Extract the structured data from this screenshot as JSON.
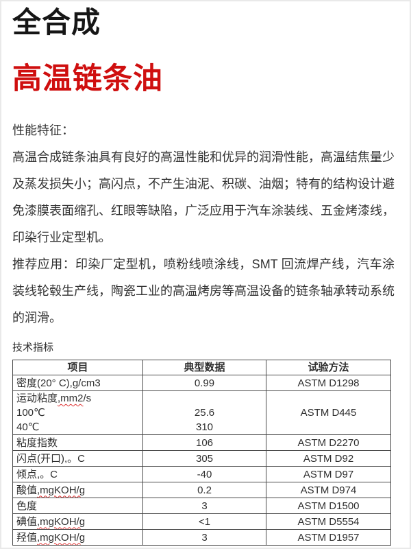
{
  "header": {
    "series": "全合成",
    "product": "高温链条油"
  },
  "colors": {
    "product_title_red": "#cf0f0f",
    "spellcheck_wavy_red": "#e03535",
    "table_border": "#474747"
  },
  "sections": {
    "features_heading": "性能特征：",
    "features_body": "高温合成链条油具有良好的高温性能和优异的润滑性能，高温结焦量少及蒸发损失小；高闪点，不产生油泥、积碳、油烟；特有的结构设计避免漆膜表面缩孔、红眼等缺陷，广泛应用于汽车涂装线、五金烤漆线，印染行业定型机。",
    "applications_body": "推荐应用：印染厂定型机，喷粉线喷涂线，SMT 回流焊产线，汽车涂装线轮毂生产线，陶瓷工业的高温烤房等高温设备的链条轴承转动系统的润滑。",
    "table_caption": "技术指标"
  },
  "table": {
    "headers": [
      "项目",
      "典型数据",
      "试验方法"
    ],
    "rows": [
      {
        "item": "密度(20° C),g/cm3",
        "value": "0.99",
        "method": "ASTM D1298"
      },
      {
        "item_lines": [
          "运动粘度,mm2/s",
          "100℃",
          "40℃"
        ],
        "wavy": ",mm2",
        "value_lines": [
          "",
          "25.6",
          "310"
        ],
        "method": "ASTM D445"
      },
      {
        "item": "粘度指数",
        "value": "106",
        "method": "ASTM D2270"
      },
      {
        "item": "闪点(开口),。C",
        "value": "305",
        "method": "ASTM D92"
      },
      {
        "item": "倾点,。C",
        "value": "-40",
        "method": "ASTM D97"
      },
      {
        "item": "酸值,mgKOH/g",
        "wavy": ",mgKOH/g",
        "value": "0.2",
        "method": "ASTM D974"
      },
      {
        "item": "色度",
        "value": "3",
        "method": "ASTM D1500"
      },
      {
        "item": "碘值,mgKOH/g",
        "wavy": ",mgKOH/g",
        "value": "<1",
        "method": "ASTM D5554"
      },
      {
        "item": "羟值,mgKOH/g",
        "wavy": ",mgKOH/g",
        "value": "3",
        "method": "ASTM D1957"
      }
    ]
  }
}
